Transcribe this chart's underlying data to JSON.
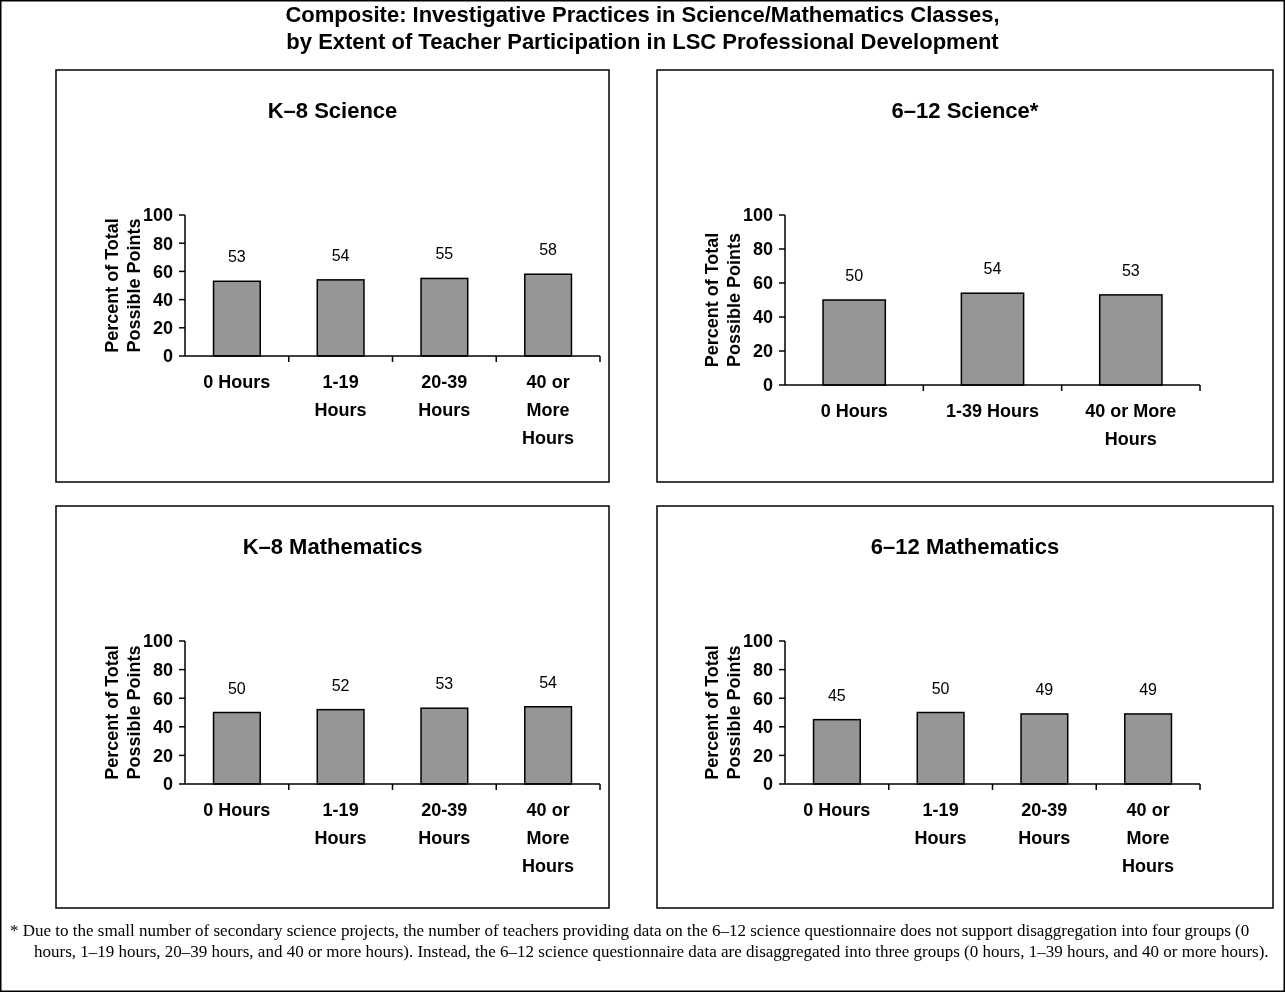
{
  "chart_data": [
    {
      "type": "bar",
      "title": "K–8 Science",
      "ylabel": "Percent of Total Possible Points",
      "categories": [
        "0 Hours",
        "1-19 Hours",
        "20-39 Hours",
        "40 or More Hours"
      ],
      "values": [
        53,
        54,
        55,
        58
      ],
      "color": "#969696",
      "ylim": [
        0,
        100
      ],
      "yticks": [
        0,
        20,
        40,
        60,
        80,
        100
      ],
      "data_labels": true,
      "annotations": [
        "Composite: Investigative Practices in Science/Mathematics Classes, by Extent of Teacher Participation in LSC Professional Development"
      ]
    },
    {
      "type": "bar",
      "title": "6–12 Science*",
      "ylabel": "Percent of Total Possible Points",
      "categories": [
        "0 Hours",
        "1-39 Hours",
        "40 or More Hours"
      ],
      "values": [
        50,
        54,
        53
      ],
      "color": "#969696",
      "ylim": [
        0,
        100
      ],
      "yticks": [
        0,
        20,
        40,
        60,
        80,
        100
      ],
      "data_labels": true
    },
    {
      "type": "bar",
      "title": "K–8 Mathematics",
      "ylabel": "Percent of Total Possible Points",
      "categories": [
        "0 Hours",
        "1-19 Hours",
        "20-39 Hours",
        "40 or More Hours"
      ],
      "values": [
        50,
        52,
        53,
        54
      ],
      "color": "#969696",
      "ylim": [
        0,
        100
      ],
      "yticks": [
        0,
        20,
        40,
        60,
        80,
        100
      ],
      "data_labels": true
    },
    {
      "type": "bar",
      "title": "6–12 Mathematics",
      "ylabel": "Percent of Total Possible Points",
      "categories": [
        "0 Hours",
        "1-19 Hours",
        "20-39 Hours",
        "40 or More Hours"
      ],
      "values": [
        45,
        50,
        49,
        49
      ],
      "color": "#969696",
      "ylim": [
        0,
        100
      ],
      "yticks": [
        0,
        20,
        40,
        60,
        80,
        100
      ],
      "data_labels": true,
      "annotations": [
        "* Due to the small number of secondary science projects, the number of teachers providing data on the 6–12 science questionnaire does not support disaggregation into four groups (0 hours, 1–19 hours, 20–39 hours, and 40 or more hours).  Instead, the 6–12 science questionnaire data are disaggregated into three groups (0 hours, 1–39 hours, and 40 or more hours)."
      ]
    }
  ]
}
